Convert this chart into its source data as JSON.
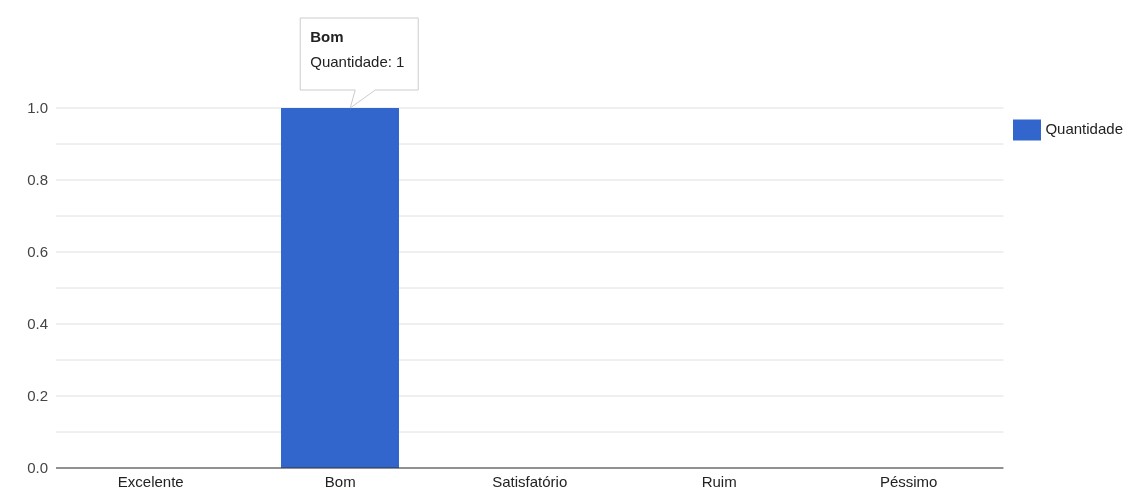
{
  "chart_data": {
    "type": "bar",
    "categories": [
      "Excelente",
      "Bom",
      "Satisfatório",
      "Ruim",
      "Péssimo"
    ],
    "series": [
      {
        "name": "Quantidade",
        "color": "#3366cc",
        "values": [
          0,
          1,
          0,
          0,
          0
        ]
      }
    ],
    "ylim": [
      0,
      1
    ],
    "yticks": [
      {
        "value": 0,
        "label": "0.0"
      },
      {
        "value": 0.1,
        "label": null
      },
      {
        "value": 0.2,
        "label": "0.2"
      },
      {
        "value": 0.3,
        "label": null
      },
      {
        "value": 0.4,
        "label": "0.4"
      },
      {
        "value": 0.5,
        "label": null
      },
      {
        "value": 0.6,
        "label": "0.6"
      },
      {
        "value": 0.7,
        "label": null
      },
      {
        "value": 0.8,
        "label": "0.8"
      },
      {
        "value": 0.9,
        "label": null
      },
      {
        "value": 1,
        "label": "1.0"
      }
    ],
    "grid": "y",
    "legend": "top right",
    "annotations": [
      "Bom",
      "Quantidade: 1"
    ]
  }
}
